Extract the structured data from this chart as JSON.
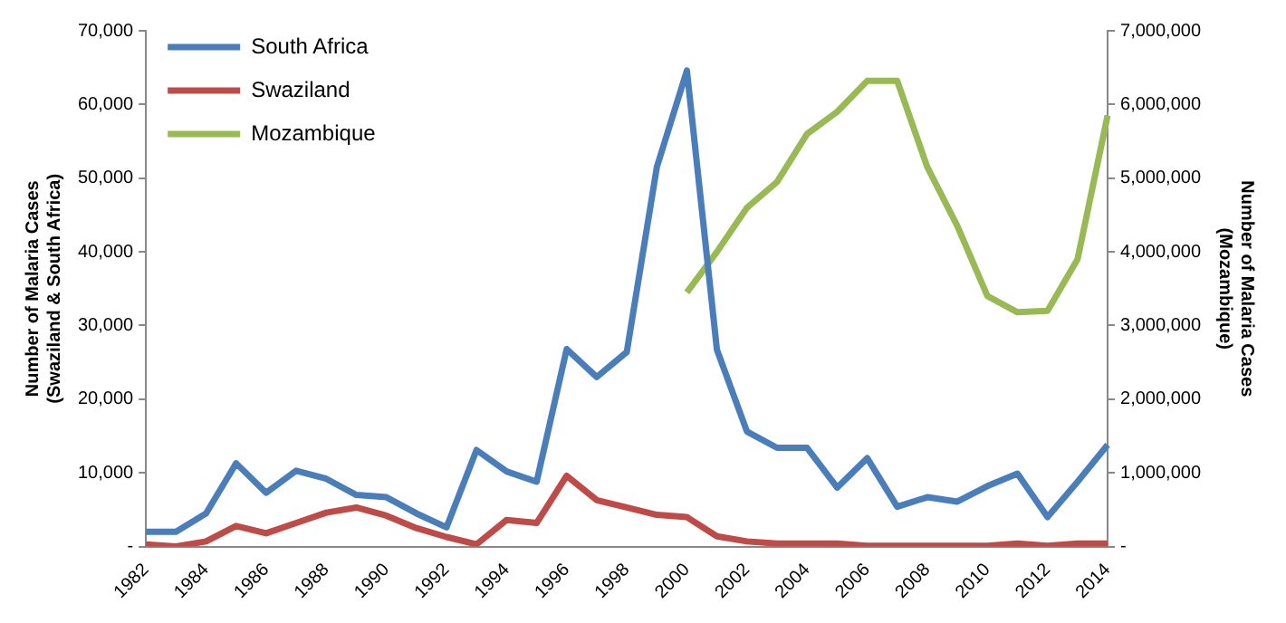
{
  "chart_data": {
    "type": "line",
    "ylabel": "Number of Malaria Cases\n(Swaziland & South Africa)",
    "y2label": "Number of Malaria Cases\n(Mozambique)",
    "categories": [
      "1982",
      null,
      "1984",
      null,
      "1986",
      null,
      "1988",
      null,
      "1990",
      null,
      "1992",
      null,
      "1994",
      null,
      "1996",
      null,
      "1998",
      null,
      "2000",
      null,
      "2002",
      null,
      "2004",
      null,
      "2006",
      null,
      "2008",
      null,
      "2010",
      null,
      "2012",
      null,
      "2014"
    ],
    "series": [
      {
        "name": "South Africa",
        "color": "#4a7ebb",
        "values": [
          2000,
          2000,
          4500,
          11300,
          7300,
          10300,
          9200,
          7000,
          6700,
          4500,
          2600,
          13100,
          10200,
          8800,
          26800,
          23000,
          26400,
          51500,
          64600,
          26700,
          15600,
          13400,
          13400,
          8000,
          12000,
          5400,
          6700,
          6100,
          8200,
          9900,
          4000,
          8800,
          13800
        ]
      },
      {
        "name": "Swaziland",
        "color": "#be4b48",
        "values": [
          300,
          0,
          700,
          2800,
          1800,
          3200,
          4600,
          5300,
          4200,
          2500,
          1300,
          300,
          3600,
          3200,
          9600,
          6300,
          5300,
          4300,
          4000,
          1400,
          700,
          400,
          400,
          400,
          100,
          100,
          100,
          100,
          100,
          400,
          100,
          400,
          400
        ]
      },
      {
        "name": "Mozambique",
        "color": "#98b954",
        "axis": "y2",
        "values": [
          null,
          null,
          null,
          null,
          null,
          null,
          null,
          null,
          null,
          null,
          null,
          null,
          null,
          null,
          null,
          null,
          null,
          null,
          3450000,
          4000000,
          4600000,
          4950000,
          5600000,
          5900000,
          6320000,
          6320000,
          5150000,
          4350000,
          3400000,
          3180000,
          3200000,
          3900000,
          5850000
        ]
      }
    ],
    "ylim": [
      0,
      70000
    ],
    "yticks": [
      {
        "value": 0,
        "label": "-"
      },
      {
        "value": 10000,
        "label": "10,000"
      },
      {
        "value": 20000,
        "label": "20,000"
      },
      {
        "value": 30000,
        "label": "30,000"
      },
      {
        "value": 40000,
        "label": "40,000"
      },
      {
        "value": 50000,
        "label": "50,000"
      },
      {
        "value": 60000,
        "label": "60,000"
      },
      {
        "value": 70000,
        "label": "70,000"
      }
    ],
    "y2lim": [
      0,
      7000000
    ],
    "y2ticks": [
      {
        "value": 0,
        "label": "-"
      },
      {
        "value": 1000000,
        "label": "1,000,000"
      },
      {
        "value": 2000000,
        "label": "2,000,000"
      },
      {
        "value": 3000000,
        "label": "3,000,000"
      },
      {
        "value": 4000000,
        "label": "4,000,000"
      },
      {
        "value": 5000000,
        "label": "5,000,000"
      },
      {
        "value": 6000000,
        "label": "6,000,000"
      },
      {
        "value": 7000000,
        "label": "7,000,000"
      }
    ],
    "grid": false,
    "legend": "top left",
    "marker": "none",
    "line_style": "solid"
  }
}
